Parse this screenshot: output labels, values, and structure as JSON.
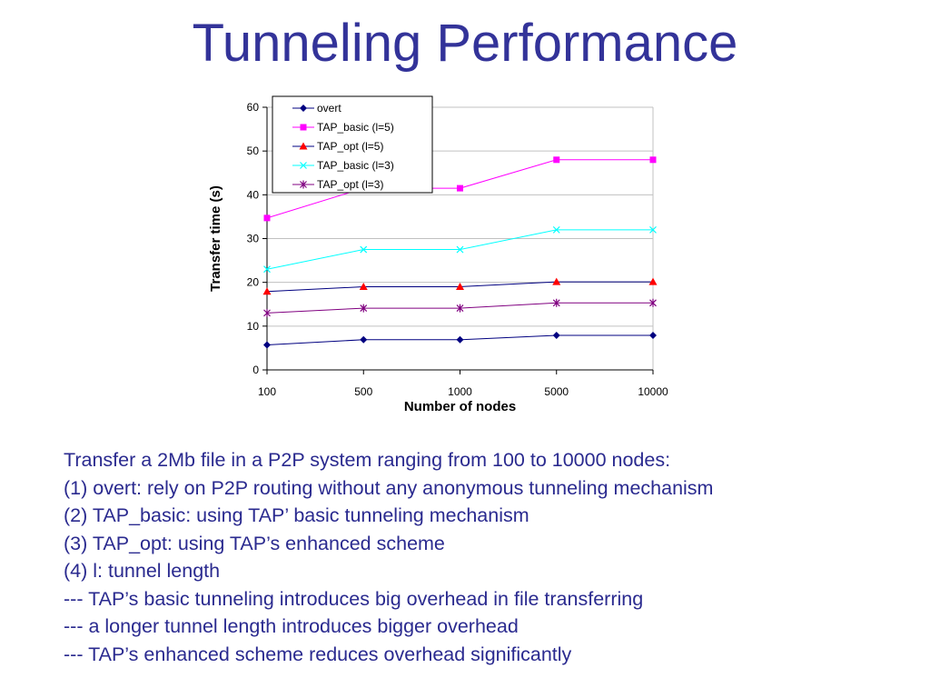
{
  "slide": {
    "title": "Tunneling Performance",
    "title_color": "#333399",
    "text_color": "#2a2a8f"
  },
  "chart_data": {
    "type": "line",
    "xlabel": "Number of nodes",
    "ylabel": "Transfer time (s)",
    "categories": [
      "100",
      "500",
      "1000",
      "5000",
      "10000"
    ],
    "ylim": [
      0,
      60
    ],
    "yticks": [
      0,
      10,
      20,
      30,
      40,
      50,
      60
    ],
    "grid": "horizontal",
    "legend_position": "top-left",
    "series": [
      {
        "name": "overt",
        "values": [
          5.7,
          6.9,
          6.9,
          7.9,
          7.9
        ],
        "color": "#000080",
        "marker": "diamond"
      },
      {
        "name": "TAP_basic (l=5)",
        "values": [
          34.7,
          41.5,
          41.5,
          48.0,
          48.0
        ],
        "color": "#ff00ff",
        "marker": "square"
      },
      {
        "name": "TAP_opt (l=5)",
        "values": [
          17.9,
          19.0,
          19.0,
          20.1,
          20.1
        ],
        "color": "#ff0000",
        "marker": "triangle",
        "line_color": "#000080"
      },
      {
        "name": "TAP_basic (l=3)",
        "values": [
          23.0,
          27.5,
          27.5,
          32.0,
          32.0
        ],
        "color": "#00ffff",
        "marker": "x"
      },
      {
        "name": "TAP_opt (l=3)",
        "values": [
          13.0,
          14.1,
          14.1,
          15.3,
          15.3
        ],
        "color": "#800080",
        "marker": "star"
      }
    ]
  },
  "description": {
    "lines": [
      "Transfer a 2Mb file in a P2P system ranging from 100 to 10000 nodes:",
      "(1) overt: rely on P2P routing without any anonymous tunneling mechanism",
      "(2) TAP_basic: using TAP’ basic tunneling mechanism",
      "(3) TAP_opt: using TAP’s enhanced scheme",
      "(4) l: tunnel length",
      "--- TAP’s basic tunneling introduces big overhead in file transferring",
      "--- a longer tunnel length introduces bigger overhead",
      "--- TAP’s enhanced scheme reduces overhead significantly"
    ]
  }
}
